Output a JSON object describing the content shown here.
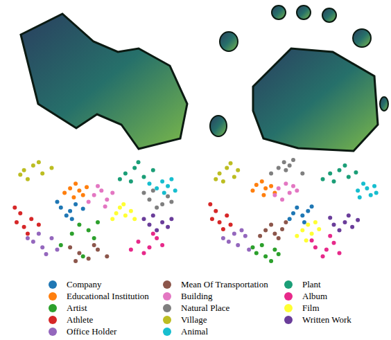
{
  "chart_data": [
    {
      "type": "scatter",
      "xlim": [
        0,
        100
      ],
      "ylim": [
        0,
        100
      ],
      "tick_labels": false,
      "legend": "bottom",
      "series": [
        {
          "name": "Company",
          "color": "#1f77b4",
          "values": [
            [
              30,
              55
            ],
            [
              35,
              52
            ],
            [
              38,
              58
            ],
            [
              33,
              48
            ],
            [
              42,
              54
            ],
            [
              28,
              60
            ],
            [
              36,
              45
            ]
          ]
        },
        {
          "name": "Educational Institution",
          "color": "#ff7f0e",
          "values": [
            [
              35,
              72
            ],
            [
              40,
              70
            ],
            [
              38,
              76
            ],
            [
              44,
              73
            ],
            [
              32,
              68
            ],
            [
              42,
              66
            ],
            [
              37,
              64
            ]
          ]
        },
        {
          "name": "Artist",
          "color": "#2ca02c",
          "values": [
            [
              40,
              40
            ],
            [
              45,
              35
            ],
            [
              36,
              32
            ],
            [
              50,
              42
            ],
            [
              30,
              22
            ],
            [
              42,
              12
            ],
            [
              48,
              28
            ]
          ]
        },
        {
          "name": "Athlete",
          "color": "#d62728",
          "values": [
            [
              6,
              42
            ],
            [
              10,
              38
            ],
            [
              8,
              50
            ],
            [
              14,
              45
            ],
            [
              12,
              32
            ],
            [
              5,
              55
            ],
            [
              18,
              40
            ]
          ]
        },
        {
          "name": "Office Holder",
          "color": "#9467bd",
          "values": [
            [
              15,
              25
            ],
            [
              20,
              20
            ],
            [
              25,
              28
            ],
            [
              18,
              32
            ],
            [
              28,
              18
            ],
            [
              12,
              28
            ],
            [
              22,
              14
            ]
          ]
        },
        {
          "name": "Mean Of Transportation",
          "color": "#8c564b",
          "values": [
            [
              40,
              15
            ],
            [
              45,
              10
            ],
            [
              50,
              18
            ],
            [
              55,
              12
            ],
            [
              38,
              8
            ],
            [
              48,
              22
            ],
            [
              35,
              20
            ]
          ]
        },
        {
          "name": "Building",
          "color": "#e377c2",
          "values": [
            [
              48,
              66
            ],
            [
              52,
              70
            ],
            [
              55,
              62
            ],
            [
              50,
              74
            ],
            [
              58,
              68
            ],
            [
              45,
              60
            ],
            [
              54,
              56
            ]
          ]
        },
        {
          "name": "Natural Place",
          "color": "#7f7f7f",
          "values": [
            [
              78,
              62
            ],
            [
              85,
              58
            ],
            [
              88,
              65
            ],
            [
              82,
              55
            ],
            [
              75,
              68
            ],
            [
              90,
              60
            ],
            [
              80,
              70
            ]
          ]
        },
        {
          "name": "Village",
          "color": "#bcbd22",
          "values": [
            [
              10,
              88
            ],
            [
              15,
              92
            ],
            [
              20,
              85
            ],
            [
              12,
              80
            ],
            [
              25,
              90
            ],
            [
              18,
              95
            ],
            [
              8,
              84
            ]
          ]
        },
        {
          "name": "Animal",
          "color": "#17becf",
          "values": [
            [
              82,
              72
            ],
            [
              88,
              74
            ],
            [
              92,
              70
            ],
            [
              85,
              78
            ],
            [
              78,
              76
            ],
            [
              90,
              80
            ],
            [
              86,
              68
            ]
          ]
        },
        {
          "name": "Plant",
          "color": "#1b9e77",
          "values": [
            [
              65,
              85
            ],
            [
              70,
              90
            ],
            [
              75,
              82
            ],
            [
              80,
              88
            ],
            [
              68,
              78
            ],
            [
              72,
              95
            ],
            [
              62,
              80
            ]
          ]
        },
        {
          "name": "Album",
          "color": "#e7298a",
          "values": [
            [
              72,
              25
            ],
            [
              78,
              20
            ],
            [
              82,
              28
            ],
            [
              75,
              15
            ],
            [
              85,
              22
            ],
            [
              68,
              18
            ],
            [
              80,
              32
            ]
          ]
        },
        {
          "name": "Film",
          "color": "#ffff33",
          "values": [
            [
              60,
              50
            ],
            [
              65,
              48
            ],
            [
              62,
              55
            ],
            [
              68,
              52
            ],
            [
              58,
              45
            ],
            [
              70,
              45
            ],
            [
              64,
              58
            ]
          ]
        },
        {
          "name": "Written Work",
          "color": "#6a3d9a",
          "values": [
            [
              78,
              40
            ],
            [
              85,
              42
            ],
            [
              82,
              35
            ],
            [
              88,
              38
            ],
            [
              75,
              45
            ],
            [
              90,
              45
            ],
            [
              80,
              48
            ]
          ]
        }
      ]
    },
    {
      "type": "scatter",
      "xlim": [
        0,
        100
      ],
      "ylim": [
        0,
        100
      ],
      "tick_labels": false,
      "legend": "bottom",
      "series": [
        {
          "name": "Company",
          "color": "#1f77b4",
          "values": [
            [
              50,
              50
            ],
            [
              55,
              48
            ],
            [
              52,
              55
            ],
            [
              58,
              52
            ],
            [
              48,
              45
            ],
            [
              56,
              42
            ],
            [
              60,
              56
            ]
          ]
        },
        {
          "name": "Educational Institution",
          "color": "#ff7f0e",
          "values": [
            [
              30,
              75
            ],
            [
              35,
              72
            ],
            [
              33,
              78
            ],
            [
              38,
              74
            ],
            [
              28,
              70
            ],
            [
              40,
              68
            ],
            [
              34,
              66
            ]
          ]
        },
        {
          "name": "Artist",
          "color": "#2ca02c",
          "values": [
            [
              30,
              15
            ],
            [
              35,
              12
            ],
            [
              40,
              18
            ],
            [
              33,
              22
            ],
            [
              28,
              20
            ],
            [
              38,
              8
            ],
            [
              42,
              14
            ]
          ]
        },
        {
          "name": "Athlete",
          "color": "#d62728",
          "values": [
            [
              6,
              45
            ],
            [
              10,
              42
            ],
            [
              8,
              52
            ],
            [
              14,
              48
            ],
            [
              12,
              36
            ],
            [
              5,
              58
            ],
            [
              16,
              40
            ]
          ]
        },
        {
          "name": "Office Holder",
          "color": "#9467bd",
          "values": [
            [
              15,
              25
            ],
            [
              20,
              22
            ],
            [
              24,
              30
            ],
            [
              18,
              32
            ],
            [
              26,
              18
            ],
            [
              12,
              28
            ],
            [
              22,
              35
            ]
          ]
        },
        {
          "name": "Mean Of Transportation",
          "color": "#8c564b",
          "values": [
            [
              35,
              35
            ],
            [
              40,
              32
            ],
            [
              38,
              40
            ],
            [
              44,
              36
            ],
            [
              32,
              30
            ],
            [
              42,
              28
            ],
            [
              46,
              42
            ]
          ]
        },
        {
          "name": "Building",
          "color": "#e377c2",
          "values": [
            [
              42,
              72
            ],
            [
              46,
              76
            ],
            [
              48,
              68
            ],
            [
              40,
              66
            ],
            [
              50,
              74
            ],
            [
              44,
              62
            ],
            [
              52,
              70
            ]
          ]
        },
        {
          "name": "Natural Place",
          "color": "#7f7f7f",
          "values": [
            [
              45,
              95
            ],
            [
              48,
              92
            ],
            [
              42,
              90
            ],
            [
              50,
              97
            ],
            [
              46,
              88
            ],
            [
              55,
              85
            ],
            [
              38,
              85
            ]
          ]
        },
        {
          "name": "Village",
          "color": "#bcbd22",
          "values": [
            [
              10,
              85
            ],
            [
              14,
              90
            ],
            [
              18,
              82
            ],
            [
              12,
              78
            ],
            [
              20,
              88
            ],
            [
              16,
              94
            ],
            [
              8,
              80
            ]
          ]
        },
        {
          "name": "Animal",
          "color": "#17becf",
          "values": [
            [
              85,
              70
            ],
            [
              90,
              72
            ],
            [
              92,
              66
            ],
            [
              88,
              76
            ],
            [
              94,
              74
            ],
            [
              86,
              64
            ],
            [
              95,
              68
            ]
          ]
        },
        {
          "name": "Plant",
          "color": "#1b9e77",
          "values": [
            [
              70,
              85
            ],
            [
              75,
              88
            ],
            [
              80,
              82
            ],
            [
              78,
              92
            ],
            [
              72,
              78
            ],
            [
              84,
              86
            ],
            [
              66,
              80
            ]
          ]
        },
        {
          "name": "Album",
          "color": "#e7298a",
          "values": [
            [
              62,
              20
            ],
            [
              68,
              18
            ],
            [
              72,
              24
            ],
            [
              66,
              12
            ],
            [
              75,
              15
            ],
            [
              60,
              26
            ],
            [
              70,
              30
            ]
          ]
        },
        {
          "name": "Film",
          "color": "#ffff33",
          "values": [
            [
              55,
              35
            ],
            [
              60,
              32
            ],
            [
              58,
              40
            ],
            [
              64,
              36
            ],
            [
              52,
              30
            ],
            [
              62,
              42
            ],
            [
              57,
              26
            ]
          ]
        },
        {
          "name": "Written Work",
          "color": "#6a3d9a",
          "values": [
            [
              72,
              40
            ],
            [
              78,
              42
            ],
            [
              75,
              35
            ],
            [
              82,
              38
            ],
            [
              70,
              46
            ],
            [
              85,
              44
            ],
            [
              80,
              48
            ]
          ]
        }
      ]
    }
  ]
}
